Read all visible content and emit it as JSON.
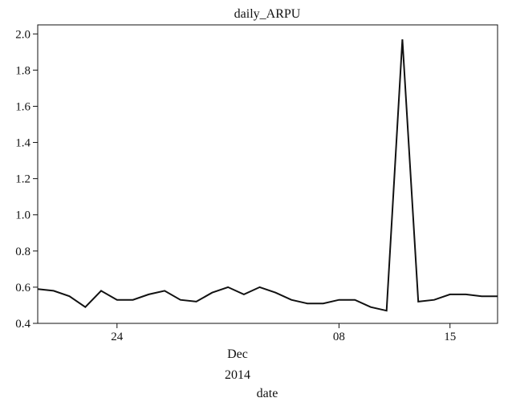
{
  "chart_data": {
    "type": "line",
    "title": "daily_ARPU",
    "xlabel": "date",
    "ylabel": "",
    "x_start": "2014-11-19",
    "x_end": "2014-12-18",
    "x_ticks": [
      {
        "date": "2014-11-24",
        "label": "24"
      },
      {
        "date": "2014-12-08",
        "label": "08"
      },
      {
        "date": "2014-12-15",
        "label": "15"
      }
    ],
    "x_month_label": "Dec",
    "x_year_label": "2014",
    "ylim": [
      0.4,
      2.05
    ],
    "y_ticks": [
      "0.4",
      "0.6",
      "0.8",
      "1.0",
      "1.2",
      "1.4",
      "1.6",
      "1.8",
      "2.0"
    ],
    "grid": false,
    "line_color": "#111111",
    "x": [
      "2014-11-19",
      "2014-11-20",
      "2014-11-21",
      "2014-11-22",
      "2014-11-23",
      "2014-11-24",
      "2014-11-25",
      "2014-11-26",
      "2014-11-27",
      "2014-11-28",
      "2014-11-29",
      "2014-11-30",
      "2014-12-01",
      "2014-12-02",
      "2014-12-03",
      "2014-12-04",
      "2014-12-05",
      "2014-12-06",
      "2014-12-07",
      "2014-12-08",
      "2014-12-09",
      "2014-12-10",
      "2014-12-11",
      "2014-12-12",
      "2014-12-13",
      "2014-12-14",
      "2014-12-15",
      "2014-12-16",
      "2014-12-17",
      "2014-12-18"
    ],
    "values": [
      0.59,
      0.58,
      0.55,
      0.49,
      0.58,
      0.53,
      0.53,
      0.56,
      0.58,
      0.53,
      0.52,
      0.57,
      0.6,
      0.56,
      0.6,
      0.57,
      0.53,
      0.51,
      0.51,
      0.53,
      0.53,
      0.49,
      0.47,
      1.97,
      0.52,
      0.53,
      0.56,
      0.56,
      0.55,
      0.55
    ]
  }
}
